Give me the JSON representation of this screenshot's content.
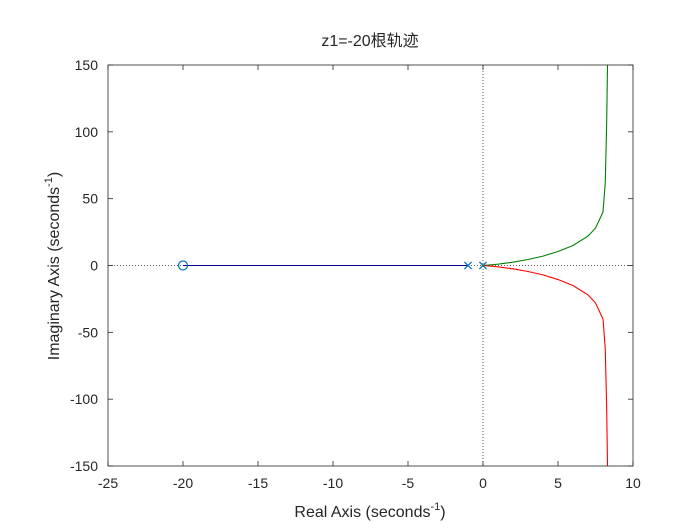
{
  "chart_data": {
    "type": "line",
    "title": "z1=-20根轨迹",
    "xlabel": "Real Axis (seconds",
    "xlabel_sup": "-1",
    "xlabel_close": ")",
    "ylabel": "Imaginary Axis (seconds",
    "ylabel_sup": "-1",
    "ylabel_close": ")",
    "xlim": [
      -25,
      10
    ],
    "ylim": [
      -150,
      150
    ],
    "xticks": [
      -25,
      -20,
      -15,
      -10,
      -5,
      0,
      5,
      10
    ],
    "yticks": [
      -150,
      -100,
      -50,
      0,
      50,
      100,
      150
    ],
    "xtick_labels": [
      "-25",
      "-20",
      "-15",
      "-10",
      "-5",
      "0",
      "5",
      "10"
    ],
    "ytick_labels": [
      "-150",
      "-100",
      "-50",
      "0",
      "50",
      "100",
      "150"
    ],
    "grid": false,
    "reference_lines": {
      "x": 0,
      "y": 0,
      "style": "dotted"
    },
    "poles": [
      {
        "x": -1,
        "y": 0
      },
      {
        "x": 0,
        "y": 0
      }
    ],
    "zeros": [
      {
        "x": -20,
        "y": 0
      }
    ],
    "series": [
      {
        "color": "#00008b",
        "points": [
          [
            -20,
            0
          ],
          [
            -1,
            0
          ]
        ]
      },
      {
        "color": "#008000",
        "points": [
          [
            0,
            0
          ],
          [
            1,
            1
          ],
          [
            2,
            2.5
          ],
          [
            3,
            4.5
          ],
          [
            4,
            7
          ],
          [
            5,
            10.5
          ],
          [
            6,
            15
          ],
          [
            7,
            22
          ],
          [
            7.5,
            28
          ],
          [
            8,
            40
          ],
          [
            8.15,
            62
          ],
          [
            8.2,
            85
          ],
          [
            8.25,
            110
          ],
          [
            8.3,
            150
          ]
        ]
      },
      {
        "color": "#ff0000",
        "points": [
          [
            0,
            0
          ],
          [
            1,
            -1
          ],
          [
            2,
            -2.5
          ],
          [
            3,
            -4.5
          ],
          [
            4,
            -7
          ],
          [
            5,
            -10.5
          ],
          [
            6,
            -15
          ],
          [
            7,
            -22
          ],
          [
            7.5,
            -28
          ],
          [
            8,
            -40
          ],
          [
            8.15,
            -62
          ],
          [
            8.2,
            -85
          ],
          [
            8.25,
            -110
          ],
          [
            8.3,
            -150
          ]
        ]
      }
    ],
    "marker_color": "#0072bd"
  }
}
